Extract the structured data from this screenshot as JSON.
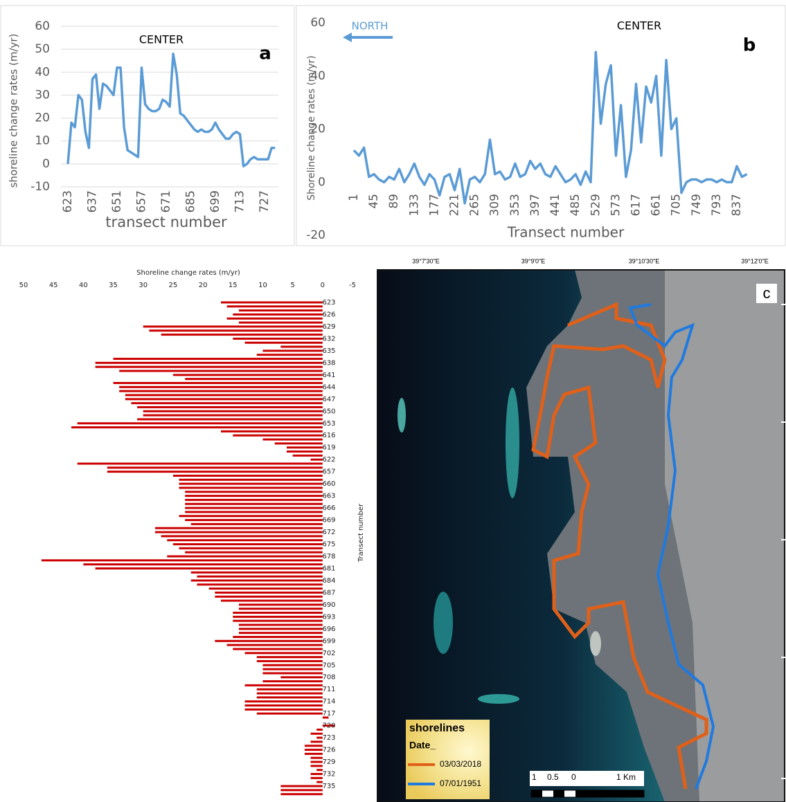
{
  "chart_data": [
    {
      "type": "line",
      "title": "CENTER",
      "panel_label": "a",
      "xlabel": "transect number",
      "ylabel": "shoreline change rates (m/yr)",
      "categories": [
        "623",
        null,
        null,
        null,
        null,
        null,
        null,
        "637",
        null,
        null,
        null,
        null,
        null,
        null,
        "651",
        null,
        null,
        null,
        null,
        null,
        null,
        "657",
        null,
        null,
        null,
        null,
        null,
        null,
        "671",
        null,
        null,
        null,
        null,
        null,
        null,
        "685",
        null,
        null,
        null,
        null,
        null,
        null,
        "699",
        null,
        null,
        null,
        null,
        null,
        null,
        "713",
        null,
        null,
        null,
        null,
        null,
        null,
        "727",
        null,
        null,
        null
      ],
      "series": [
        {
          "name": "CENTER",
          "color": "#5b9bd5",
          "values": [
            0,
            18,
            16,
            30,
            28,
            14,
            7,
            37,
            39,
            24,
            35,
            34,
            32,
            30,
            42,
            42,
            16,
            6,
            5,
            4,
            3,
            42,
            26,
            24,
            23,
            23,
            24,
            28,
            27,
            25,
            48,
            39,
            22,
            21,
            19,
            17,
            15,
            14,
            15,
            14,
            14,
            15,
            18,
            15,
            13,
            11,
            11,
            13,
            14,
            13,
            -1,
            0,
            2,
            3,
            2,
            2,
            2,
            2,
            7,
            7
          ]
        }
      ],
      "ylim": [
        -10,
        60
      ],
      "yticks": [
        -10,
        0,
        10,
        20,
        30,
        40,
        50,
        60
      ],
      "grid": true
    },
    {
      "type": "line",
      "title": "CENTER",
      "panel_label": "b",
      "annotation": "NORTH",
      "xlabel": "Transect number",
      "ylabel": "Shoreline change rates (m/yr)",
      "categories": [
        "1",
        null,
        null,
        null,
        "45",
        null,
        null,
        null,
        "89",
        null,
        null,
        null,
        "133",
        null,
        null,
        null,
        "177",
        null,
        null,
        null,
        "221",
        null,
        null,
        null,
        "265",
        null,
        null,
        null,
        "309",
        null,
        null,
        null,
        "353",
        null,
        null,
        null,
        "397",
        null,
        null,
        null,
        "441",
        null,
        null,
        null,
        "485",
        null,
        null,
        null,
        "529",
        null,
        null,
        null,
        "573",
        null,
        null,
        null,
        "617",
        null,
        null,
        null,
        "661",
        null,
        null,
        null,
        "705",
        null,
        null,
        null,
        "749",
        null,
        null,
        null,
        "793",
        null,
        null,
        null,
        "837",
        null,
        null
      ],
      "series": [
        {
          "name": "CENTER",
          "color": "#5b9bd5",
          "values": [
            12,
            10,
            13,
            2,
            3,
            1,
            0,
            2,
            1,
            5,
            0,
            3,
            7,
            2,
            -1,
            3,
            1,
            -5,
            2,
            3,
            -3,
            5,
            -8,
            1,
            2,
            0,
            3,
            16,
            3,
            4,
            1,
            2,
            7,
            2,
            3,
            8,
            5,
            7,
            3,
            2,
            6,
            3,
            0,
            1,
            3,
            -1,
            4,
            0,
            49,
            22,
            37,
            44,
            10,
            29,
            2,
            12,
            37,
            15,
            36,
            30,
            40,
            10,
            46,
            20,
            24,
            -4,
            0,
            1,
            1,
            0,
            1,
            1,
            0,
            1,
            0,
            0,
            6,
            2,
            3
          ]
        }
      ],
      "ylim": [
        -20,
        60
      ],
      "yticks": [
        -20,
        0,
        20,
        40,
        60
      ],
      "grid": false
    },
    {
      "type": "bar",
      "orientation": "horizontal",
      "xlabel": "Shoreline change rates (m/yr)",
      "ylabel": "Transect number",
      "categories": [
        "623",
        null,
        null,
        "626",
        null,
        null,
        "629",
        null,
        null,
        "632",
        null,
        null,
        "635",
        null,
        null,
        "638",
        null,
        null,
        "641",
        null,
        null,
        "644",
        null,
        null,
        "647",
        null,
        null,
        "650",
        null,
        null,
        "653",
        null,
        null,
        "616",
        null,
        null,
        "619",
        null,
        null,
        "622",
        null,
        null,
        "657",
        null,
        null,
        "660",
        null,
        null,
        "663",
        null,
        null,
        "666",
        null,
        null,
        "669",
        null,
        null,
        "672",
        null,
        null,
        "675",
        null,
        null,
        "678",
        null,
        null,
        "681",
        null,
        null,
        "684",
        null,
        null,
        "687",
        null,
        null,
        "690",
        null,
        null,
        "693",
        null,
        null,
        "696",
        null,
        null,
        "699",
        null,
        null,
        "702",
        null,
        null,
        "705",
        null,
        null,
        "708",
        null,
        null,
        "711",
        null,
        null,
        "714",
        null,
        null,
        "717",
        null,
        null,
        "720",
        null,
        null,
        "723",
        null,
        null,
        "726",
        null,
        null,
        "729",
        null,
        null,
        "732",
        null,
        null,
        "735",
        null,
        null
      ],
      "values": [
        17,
        16,
        14,
        15,
        16,
        14,
        30,
        29,
        27,
        15,
        13,
        7,
        10,
        11,
        35,
        38,
        38,
        34,
        25,
        23,
        35,
        34,
        34,
        33,
        33,
        32,
        31,
        30,
        30,
        31,
        41,
        42,
        17,
        15,
        10,
        8,
        6,
        6,
        5,
        2,
        41,
        36,
        36,
        25,
        24,
        24,
        24,
        23,
        23,
        23,
        23,
        23,
        23,
        24,
        23,
        22,
        28,
        28,
        27,
        26,
        25,
        24,
        23,
        26,
        47,
        40,
        38,
        22,
        21,
        22,
        21,
        19,
        18,
        18,
        17,
        14,
        14,
        15,
        15,
        15,
        14,
        14,
        14,
        15,
        18,
        16,
        15,
        13,
        11,
        11,
        10,
        10,
        10,
        7,
        10,
        13,
        11,
        11,
        11,
        13,
        13,
        13,
        11,
        -1,
        0,
        -2,
        1,
        2,
        1,
        2,
        3,
        3,
        3,
        2,
        2,
        2,
        1,
        2,
        2,
        1,
        7,
        7,
        7
      ],
      "color": "#cc0000",
      "xlim": [
        50,
        -5
      ],
      "xticks": [
        50,
        45,
        40,
        35,
        30,
        25,
        20,
        15,
        10,
        5,
        0,
        -5
      ]
    }
  ],
  "map": {
    "panel_label": "c",
    "longitudes": [
      "39°7'30\"E",
      "39°9'0\"E",
      "39°10'30\"E",
      "39°12'0\"E"
    ],
    "legend": {
      "title": "shorelines",
      "field": "Date_",
      "items": [
        {
          "label": "03/03/2018",
          "color": "#e0601a"
        },
        {
          "label": "07/01/1951",
          "color": "#1f7ae0"
        }
      ]
    },
    "scale": [
      "1",
      "0.5",
      "0",
      "1 Km"
    ]
  }
}
